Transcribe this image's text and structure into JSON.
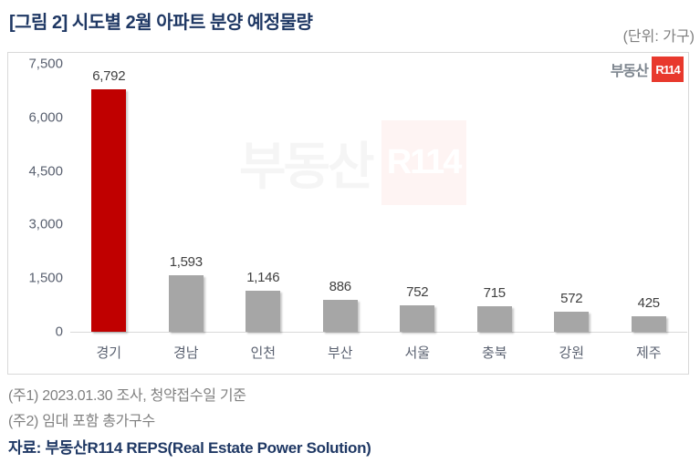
{
  "header": {
    "title": "[그림 2] 시도별 2월 아파트 분양 예정물량",
    "unit": "(단위: 가구)"
  },
  "brand": {
    "name": "부동산",
    "mark": "R114"
  },
  "chart_data": {
    "type": "bar",
    "title": "시도별 2월 아파트 분양 예정물량",
    "categories": [
      "경기",
      "경남",
      "인천",
      "부산",
      "서울",
      "충북",
      "강원",
      "제주"
    ],
    "values": [
      6792,
      1593,
      1146,
      886,
      752,
      715,
      572,
      425
    ],
    "data_labels": [
      "6,792",
      "1,593",
      "1,146",
      "886",
      "752",
      "715",
      "572",
      "425"
    ],
    "xlabel": "",
    "ylabel": "",
    "unit": "가구",
    "ylim": [
      0,
      7500
    ],
    "yticks": [
      0,
      1500,
      3000,
      4500,
      6000,
      7500
    ],
    "ytick_labels": [
      "0",
      "1,500",
      "3,000",
      "4,500",
      "6,000",
      "7,500"
    ],
    "grid": false,
    "legend": "none",
    "bar_color_default": "#A6A6A6",
    "bar_color_highlight": "#C00000",
    "highlight_index": 0
  },
  "notes": [
    "(주1) 2023.01.30 조사, 청약접수일 기준",
    "(주2) 임대 포함 총가구수"
  ],
  "source": "자료: 부동산R114 REPS(Real Estate Power Solution)",
  "colors": {
    "title_navy": "#1F3864",
    "note_gray": "#808080",
    "axis_label": "#5A6170",
    "brand_red": "#E8392D",
    "chart_border": "#D9D9D9"
  }
}
